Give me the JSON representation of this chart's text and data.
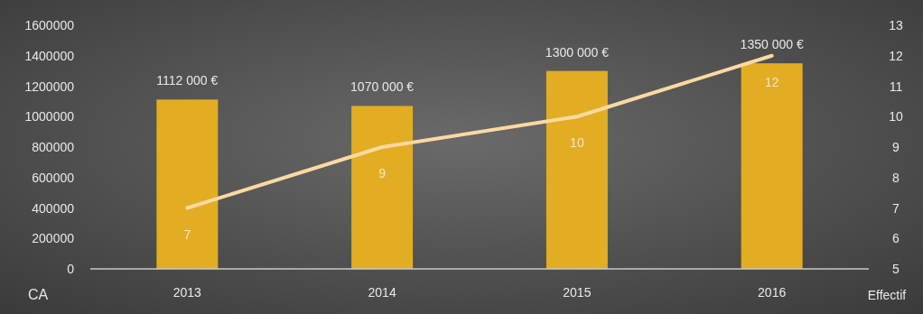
{
  "chart_data": {
    "type": "bar",
    "categories": [
      "2013",
      "2014",
      "2015",
      "2016"
    ],
    "ylabel": "CA",
    "y2label": "Effectif",
    "ylim": [
      0,
      1600000
    ],
    "yticks": [
      0,
      200000,
      400000,
      600000,
      800000,
      1000000,
      1200000,
      1400000,
      1600000
    ],
    "y2lim": [
      5,
      13
    ],
    "y2ticks": [
      5,
      6,
      7,
      8,
      9,
      10,
      11,
      12,
      13
    ],
    "series": [
      {
        "color": "#e2ad22",
        "values": [
          1112000,
          1070000,
          1300000,
          1350000
        ],
        "value_labels": [
          "1112 000 €",
          "1070 000 €",
          "1300 000 €",
          "1350 000 €"
        ]
      },
      {
        "type": "line",
        "axis": "y2",
        "color": "#fbd9a0",
        "values": [
          7,
          9,
          10,
          12
        ],
        "value_labels": [
          "7",
          "9",
          "10",
          "12"
        ]
      }
    ]
  }
}
